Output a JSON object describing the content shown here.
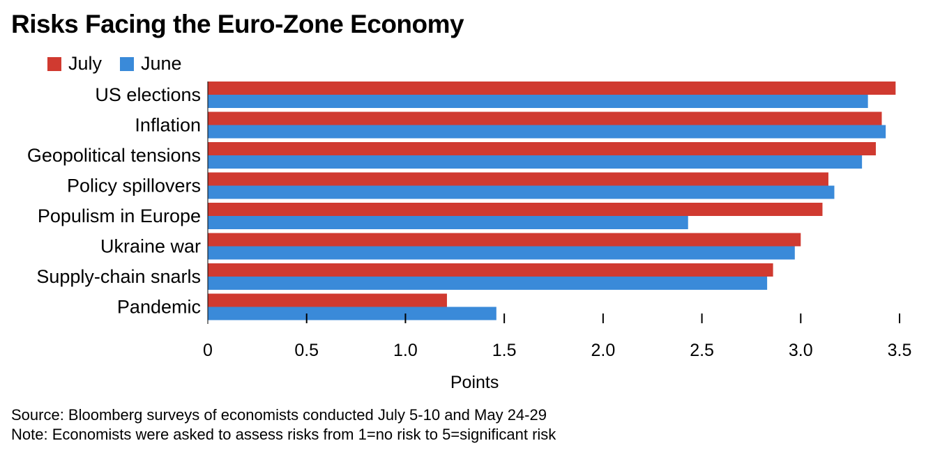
{
  "chart_data": {
    "type": "bar",
    "orientation": "horizontal",
    "title": "Risks Facing the Euro-Zone Economy",
    "xlabel": "Points",
    "ylabel": "",
    "xlim": [
      0,
      3.5
    ],
    "x_ticks": [
      "0",
      "0.5",
      "1.0",
      "1.5",
      "2.0",
      "2.5",
      "3.0",
      "3.5"
    ],
    "legend_position": "top-left",
    "grid": false,
    "categories": [
      "US elections",
      "Inflation",
      "Geopolitical tensions",
      "Policy spillovers",
      "Populism in Europe",
      "Ukraine war",
      "Supply-chain snarls",
      "Pandemic"
    ],
    "series": [
      {
        "name": "July",
        "color": "#d03a30",
        "values": [
          3.48,
          3.41,
          3.38,
          3.14,
          3.11,
          3.0,
          2.86,
          1.21
        ]
      },
      {
        "name": "June",
        "color": "#3a8ad9",
        "values": [
          3.34,
          3.43,
          3.31,
          3.17,
          2.43,
          2.97,
          2.83,
          1.46
        ]
      }
    ]
  },
  "footer": {
    "source": "Source: Bloomberg surveys of economists conducted July 5-10 and May 24-29",
    "note": "Note: Economists were asked to assess risks from 1=no risk to 5=significant risk"
  }
}
